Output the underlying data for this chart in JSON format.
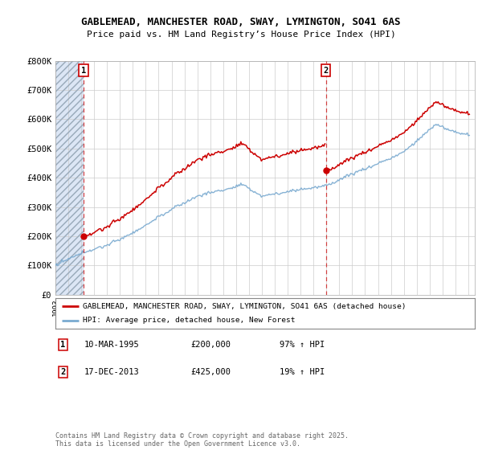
{
  "title1": "GABLEMEAD, MANCHESTER ROAD, SWAY, LYMINGTON, SO41 6AS",
  "title2": "Price paid vs. HM Land Registry’s House Price Index (HPI)",
  "ylim": [
    0,
    800000
  ],
  "yticks": [
    0,
    100000,
    200000,
    300000,
    400000,
    500000,
    600000,
    700000,
    800000
  ],
  "ytick_labels": [
    "£0",
    "£100K",
    "£200K",
    "£300K",
    "£400K",
    "£500K",
    "£600K",
    "£700K",
    "£800K"
  ],
  "xlim_start": 1993.0,
  "xlim_end": 2025.5,
  "sale1_x": 1995.19,
  "sale1_y": 200000,
  "sale1_label": "1",
  "sale2_x": 2013.96,
  "sale2_y": 425000,
  "sale2_label": "2",
  "red_line_color": "#cc0000",
  "blue_line_color": "#7aaad0",
  "annotation_box_color": "#cc0000",
  "shaded_region_color": "#dce6f5",
  "grid_color": "#cccccc",
  "legend_line1": "GABLEMEAD, MANCHESTER ROAD, SWAY, LYMINGTON, SO41 6AS (detached house)",
  "legend_line2": "HPI: Average price, detached house, New Forest",
  "note1_label": "1",
  "note1_date": "10-MAR-1995",
  "note1_price": "£200,000",
  "note1_hpi": "97% ↑ HPI",
  "note2_label": "2",
  "note2_date": "17-DEC-2013",
  "note2_price": "£425,000",
  "note2_hpi": "19% ↑ HPI",
  "footer": "Contains HM Land Registry data © Crown copyright and database right 2025.\nThis data is licensed under the Open Government Licence v3.0.",
  "background_color": "#ffffff"
}
